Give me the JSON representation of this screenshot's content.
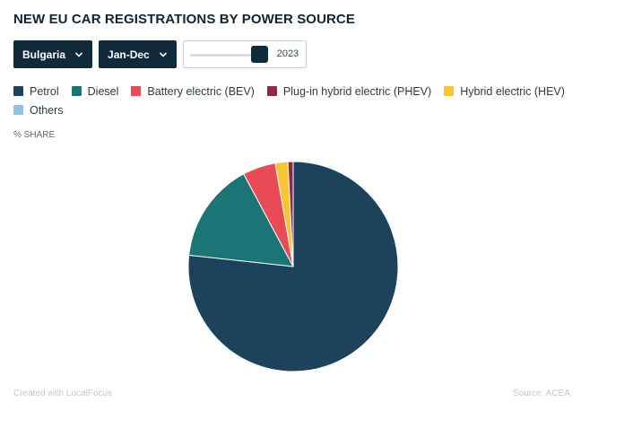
{
  "title": "NEW EU CAR REGISTRATIONS BY POWER SOURCE",
  "controls": {
    "country": "Bulgaria",
    "period": "Jan-Dec",
    "year_slider": {
      "value": "2023"
    }
  },
  "unit_label": "% SHARE",
  "footer": {
    "credit": "Created with LocalFocus",
    "source": "Source: ACEA"
  },
  "chart_data": {
    "type": "pie",
    "title": "NEW EU CAR REGISTRATIONS BY POWER SOURCE",
    "unit": "% SHARE",
    "legend_position": "top-left",
    "slices": [
      {
        "label": "Petrol",
        "value": 75.5,
        "color": "#1c425c"
      },
      {
        "label": "Diesel",
        "value": 15.2,
        "color": "#1b7574"
      },
      {
        "label": "Battery electric (BEV)",
        "value": 5.0,
        "color": "#e84b55"
      },
      {
        "label": "Plug-in hybrid electric (PHEV)",
        "value": 0.8,
        "color": "#8a2a47"
      },
      {
        "label": "Hybrid electric (HEV)",
        "value": 1.9,
        "color": "#f6c531"
      },
      {
        "label": "Others",
        "value": 0.0,
        "color": "#8ec3e6"
      }
    ],
    "slice_order_clockwise": [
      "Petrol",
      "Diesel",
      "Battery electric (BEV)",
      "Hybrid electric (HEV)",
      "Plug-in hybrid electric (PHEV)",
      "Others"
    ]
  }
}
